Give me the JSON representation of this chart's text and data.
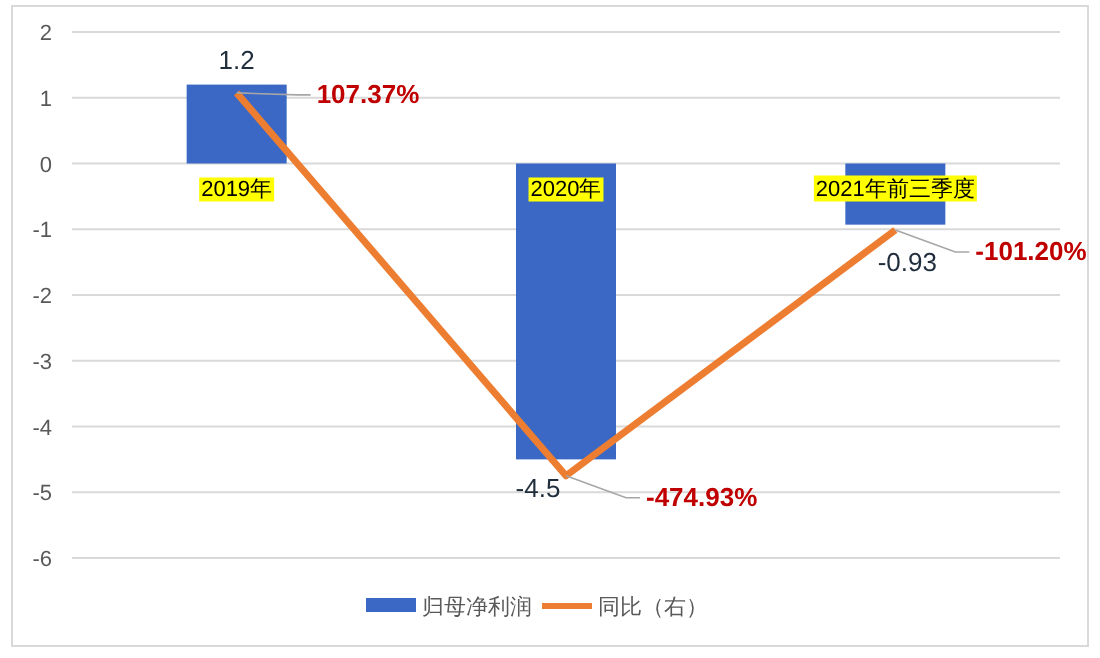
{
  "chart_data": {
    "type": "bar",
    "categories": [
      "2019年",
      "2020年",
      "2021年前三季度"
    ],
    "series": [
      {
        "name": "归母净利润",
        "type": "bar",
        "color": "#3a68c4",
        "values": [
          1.2,
          -4.5,
          -0.93
        ],
        "value_labels": [
          "1.2",
          "-4.5",
          "-0.93"
        ]
      },
      {
        "name": "同比（右）",
        "type": "line",
        "axis": "y2",
        "color": "#ed7d31",
        "values": [
          107.37,
          -474.93,
          -101.2
        ],
        "value_labels": [
          "107.37%",
          "-474.93%",
          "-101.20%"
        ]
      }
    ],
    "ylim": [
      -6,
      2
    ],
    "yticks": [
      -6,
      -5,
      -4,
      -3,
      -2,
      -1,
      0,
      1,
      2
    ],
    "y2lim": [
      -600,
      200
    ],
    "tick_labels": "xy",
    "grid": "y",
    "legend": "bottom",
    "marker": "none",
    "line_style": "solid"
  }
}
